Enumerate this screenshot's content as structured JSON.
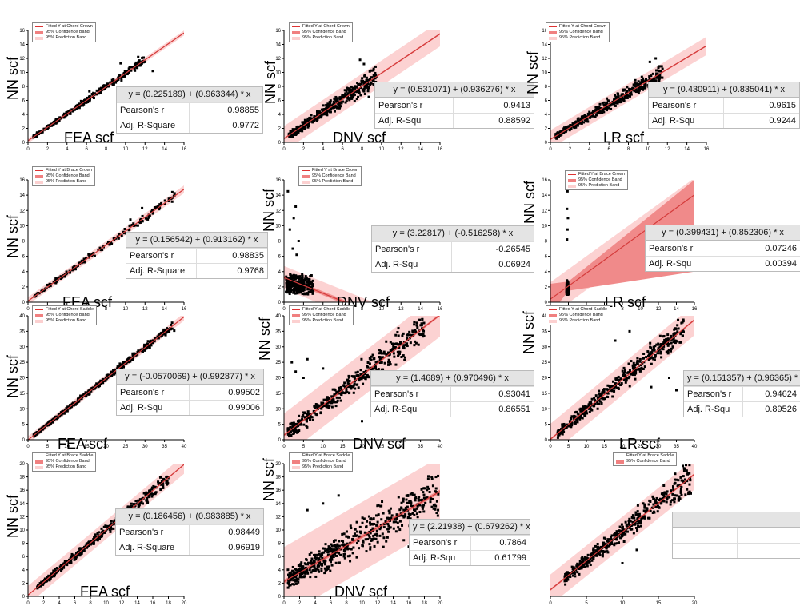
{
  "chart_data": [
    {
      "id": "p1",
      "type": "scatter",
      "xlabel": "FEA scf",
      "ylabel": "NN scf",
      "xlim": [
        0,
        16
      ],
      "ylim": [
        0,
        16
      ],
      "xticks": [
        0,
        2,
        4,
        6,
        8,
        10,
        12,
        14,
        16
      ],
      "yticks": [
        0,
        2,
        4,
        6,
        8,
        10,
        12,
        14,
        16
      ],
      "legend": [
        "Fitted Y at Chord Crown",
        "95% Confidence Band",
        "95% Prediction Band"
      ],
      "fit": {
        "intercept": 0.225189,
        "slope": 0.963344
      },
      "pred_halfwidth": 0.35,
      "conf_halfwidth": 0.05,
      "stats": {
        "equation": "y = (0.225189) + (0.963344) * x",
        "label1": "Pearson's r",
        "value1": "0.98855",
        "label2": "Adj. R-Square",
        "value2": "0.9772"
      },
      "points": {
        "n": 320,
        "xmin": 0.5,
        "xmax": 12,
        "noise": 0.4,
        "seed": 11,
        "outliers": [
          [
            12.8,
            10.2
          ],
          [
            11.3,
            12.2
          ],
          [
            9.5,
            11.3
          ],
          [
            6.3,
            7.3
          ]
        ]
      }
    },
    {
      "id": "p2",
      "type": "scatter",
      "xlabel": "DNV scf",
      "ylabel": "NN scf",
      "xlim": [
        0,
        16
      ],
      "ylim": [
        0,
        16
      ],
      "xticks": [
        0,
        2,
        4,
        6,
        8,
        10,
        12,
        14,
        16
      ],
      "yticks": [
        0,
        2,
        4,
        6,
        8,
        10,
        12,
        14,
        16
      ],
      "legend": [
        "Fitted Y at Chord Crown",
        "95% Confidence Band",
        "95% Prediction Band"
      ],
      "fit": {
        "intercept": 0.531071,
        "slope": 0.936276
      },
      "pred_halfwidth": 1.8,
      "conf_halfwidth": 0.12,
      "stats": {
        "equation": "y = (0.531071) + (0.936276) * x",
        "label1": "Pearson's r",
        "value1": "0.9413",
        "label2": "Adj. R-Squ",
        "value2": "0.88592"
      },
      "points": {
        "n": 420,
        "xmin": 0.5,
        "xmax": 9.5,
        "noise": 1.0,
        "seed": 23,
        "outliers": [
          [
            7.8,
            11.8
          ],
          [
            8.2,
            11.2
          ],
          [
            9.2,
            10.5
          ],
          [
            8.7,
            6.5
          ]
        ]
      }
    },
    {
      "id": "p3",
      "type": "scatter",
      "xlabel": "LR scf",
      "ylabel": "NN scf",
      "xlim": [
        0,
        16
      ],
      "ylim": [
        0,
        16
      ],
      "xticks": [
        0,
        2,
        4,
        6,
        8,
        10,
        12,
        14,
        16
      ],
      "yticks": [
        0,
        2,
        4,
        6,
        8,
        10,
        12,
        14,
        16
      ],
      "legend": [
        "Fitted Y at Chord Crown",
        "95% Confidence Band",
        "95% Prediction Band"
      ],
      "fit": {
        "intercept": 0.430911,
        "slope": 0.835041
      },
      "pred_halfwidth": 1.3,
      "conf_halfwidth": 0.1,
      "stats": {
        "equation": "y = (0.430911) + (0.835041) * x",
        "label1": "Pearson's r",
        "value1": "0.9615",
        "label2": "Adj. R-Squ",
        "value2": "0.9244"
      },
      "points": {
        "n": 420,
        "xmin": 0.5,
        "xmax": 11.5,
        "noise": 0.8,
        "seed": 37,
        "outliers": [
          [
            10.8,
            12.0
          ],
          [
            10.2,
            11.5
          ],
          [
            11.5,
            10.5
          ]
        ]
      }
    },
    {
      "id": "p4",
      "type": "scatter",
      "xlabel": "FEA scf",
      "ylabel": "NN scf",
      "xlim": [
        0,
        16
      ],
      "ylim": [
        0,
        16
      ],
      "xticks": [
        0,
        2,
        4,
        6,
        8,
        10,
        12,
        14,
        16
      ],
      "yticks": [
        0,
        2,
        4,
        6,
        8,
        10,
        12,
        14,
        16
      ],
      "legend": [
        "Fitted Y at Brace Crown",
        "95% Confidence Band",
        "95% Prediction Band"
      ],
      "fit": {
        "intercept": 0.156542,
        "slope": 0.913162
      },
      "pred_halfwidth": 0.5,
      "conf_halfwidth": 0.06,
      "stats": {
        "equation": "y = (0.156542) + (0.913162) * x",
        "label1": "Pearson's r",
        "value1": "0.98835",
        "label2": "Adj. R-Square",
        "value2": "0.9768"
      },
      "points": {
        "n": 160,
        "xmin": 0.6,
        "xmax": 15.2,
        "noise": 0.4,
        "seed": 41,
        "outliers": [
          [
            14.8,
            14.4
          ],
          [
            11.7,
            12.3
          ],
          [
            10.5,
            10.8
          ]
        ]
      }
    },
    {
      "id": "p5",
      "type": "scatter",
      "xlabel": "DNV scf",
      "ylabel": "NN scf",
      "xlim": [
        0,
        16
      ],
      "ylim": [
        0,
        16
      ],
      "xticks": [
        0,
        2,
        4,
        6,
        8,
        10,
        12,
        14,
        16
      ],
      "yticks": [
        0,
        2,
        4,
        6,
        8,
        10,
        12,
        14,
        16
      ],
      "legend": [
        "Fitted Y at Brace Crown",
        "95% Confidence Band",
        "95% Prediction Band"
      ],
      "fit": {
        "intercept": 3.22817,
        "slope": -0.516258
      },
      "pred_halfwidth": 1.5,
      "conf_halfwidth": 0.25,
      "stats": {
        "equation": "y = (3.22817) + (-0.516258) * x",
        "label1": "Pearson's r",
        "value1": "-0.26545",
        "label2": "Adj. R-Squ",
        "value2": "0.06924"
      },
      "points": {
        "n": 300,
        "xmin": 0.2,
        "xmax": 3.0,
        "noise": 0.8,
        "seed": 53,
        "cluster": true,
        "outliers": [
          [
            0.4,
            14.5
          ],
          [
            1.2,
            12.5
          ],
          [
            1.0,
            11.0
          ],
          [
            0.6,
            9.5
          ],
          [
            1.5,
            8.0
          ],
          [
            0.9,
            7.0
          ],
          [
            1.3,
            6.2
          ]
        ]
      }
    },
    {
      "id": "p6",
      "type": "scatter",
      "xlabel": "LR scf",
      "ylabel": "NN scf",
      "xlim": [
        0,
        16
      ],
      "ylim": [
        0,
        16
      ],
      "xticks": [
        0,
        2,
        4,
        6,
        8,
        10,
        12,
        14,
        16
      ],
      "yticks": [
        0,
        2,
        4,
        6,
        8,
        10,
        12,
        14,
        16
      ],
      "legend": [
        "Fitted Y at Brace Crown",
        "95% Confidence Band",
        "95% Prediction Band"
      ],
      "fit": {
        "intercept": 0.399431,
        "slope": 0.852306
      },
      "pred_halfwidth": 2.2,
      "conf_halfwidth": "wide",
      "stats": {
        "equation": "y = (0.399431) + (0.852306) * x",
        "label1": "Pearson's r",
        "value1": "0.07246",
        "label2": "Adj. R-Squ",
        "value2": "0.00394"
      },
      "points": {
        "n": 200,
        "xmin": 1.8,
        "xmax": 2.0,
        "noise": 0.9,
        "seed": 67,
        "vertical": true,
        "outliers": [
          [
            1.9,
            14.5
          ],
          [
            1.85,
            12.2
          ],
          [
            1.95,
            11.0
          ],
          [
            1.9,
            9.5
          ],
          [
            1.85,
            8.2
          ]
        ]
      }
    },
    {
      "id": "p7",
      "type": "scatter",
      "xlabel": "FEA scf",
      "ylabel": "NN scf",
      "xlim": [
        0,
        40
      ],
      "ylim": [
        0,
        40
      ],
      "xticks": [
        0,
        5,
        10,
        15,
        20,
        25,
        30,
        35,
        40
      ],
      "yticks": [
        0,
        5,
        10,
        15,
        20,
        25,
        30,
        35,
        40
      ],
      "legend": [
        "Fitted Y at Chord Saddle",
        "95% Confidence Band",
        "95% Prediction Band"
      ],
      "fit": {
        "intercept": -0.0570069,
        "slope": 0.992877
      },
      "pred_halfwidth": 1.2,
      "conf_halfwidth": 0.1,
      "stats": {
        "equation": "y = (-0.0570069) + (0.992877) * x",
        "label1": "Pearson's r",
        "value1": "0.99502",
        "label2": "Adj. R-Squ",
        "value2": "0.99006"
      },
      "points": {
        "n": 420,
        "xmin": 1.5,
        "xmax": 37,
        "noise": 0.9,
        "seed": 71,
        "outliers": [
          [
            36.5,
            35.8
          ],
          [
            37.5,
            35.2
          ]
        ]
      }
    },
    {
      "id": "p8",
      "type": "scatter",
      "xlabel": "DNV scf",
      "ylabel": "NN scf",
      "xlim": [
        0,
        40
      ],
      "ylim": [
        0,
        40
      ],
      "xticks": [
        0,
        5,
        10,
        15,
        20,
        25,
        30,
        35,
        40
      ],
      "yticks": [
        0,
        5,
        10,
        15,
        20,
        25,
        30,
        35,
        40
      ],
      "legend": [
        "Fitted Y at Chord Saddle",
        "95% Confidence Band",
        "95% Prediction Band"
      ],
      "fit": {
        "intercept": 1.4689,
        "slope": 0.970496
      },
      "pred_halfwidth": 7.0,
      "conf_halfwidth": 0.4,
      "stats": {
        "equation": "y = (1.4689) + (0.970496) * x",
        "label1": "Pearson's r",
        "value1": "0.93041",
        "label2": "Adj. R-Squ",
        "value2": "0.86551"
      },
      "points": {
        "n": 420,
        "xmin": 1,
        "xmax": 36,
        "noise": 4.0,
        "seed": 83,
        "outliers": [
          [
            2,
            25
          ],
          [
            3,
            22
          ],
          [
            6,
            26
          ],
          [
            5,
            20
          ],
          [
            10,
            23
          ],
          [
            20,
            6
          ],
          [
            25,
            8
          ]
        ]
      }
    },
    {
      "id": "p9",
      "type": "scatter",
      "xlabel": "LR scf",
      "ylabel": "NN scf",
      "xlim": [
        0,
        40
      ],
      "ylim": [
        0,
        40
      ],
      "xticks": [
        0,
        5,
        10,
        15,
        20,
        25,
        30,
        35,
        40
      ],
      "yticks": [
        0,
        5,
        10,
        15,
        20,
        25,
        30,
        35,
        40
      ],
      "legend": [
        "Fitted Y at Chord Saddle",
        "95% Confidence Band",
        "95% Prediction Band"
      ],
      "fit": {
        "intercept": 0.151357,
        "slope": 0.96365
      },
      "pred_halfwidth": 5.0,
      "conf_halfwidth": 0.3,
      "stats": {
        "equation": "y = (0.151357) + (0.96365) * x",
        "label1": "Pearson's r",
        "value1": "0.94624",
        "label2": "Adj. R-Squ",
        "value2": "0.89526"
      },
      "points": {
        "n": 420,
        "xmin": 2,
        "xmax": 37,
        "noise": 3.0,
        "seed": 97,
        "outliers": [
          [
            28,
            17
          ],
          [
            35,
            16
          ],
          [
            33,
            20
          ],
          [
            18,
            32
          ],
          [
            22,
            35
          ]
        ]
      }
    },
    {
      "id": "p10",
      "type": "scatter",
      "xlabel": "FEA scf",
      "ylabel": "NN scf",
      "xlim": [
        0,
        20
      ],
      "ylim": [
        0,
        20
      ],
      "xticks": [
        0,
        2,
        4,
        6,
        8,
        10,
        12,
        14,
        16,
        18,
        20
      ],
      "yticks": [
        0,
        2,
        4,
        6,
        8,
        10,
        12,
        14,
        16,
        18,
        20
      ],
      "legend": [
        "Fitted Y at Brace Saddle",
        "95% Confidence Band",
        "95% Prediction Band"
      ],
      "fit": {
        "intercept": 0.186456,
        "slope": 0.983885
      },
      "pred_halfwidth": 1.4,
      "conf_halfwidth": 0.1,
      "stats": {
        "equation": "y = (0.186456) + (0.983885) * x",
        "label1": "Pearson's r",
        "value1": "0.98449",
        "label2": "Adj. R-Square",
        "value2": "0.96919"
      },
      "points": {
        "n": 460,
        "xmin": 1.2,
        "xmax": 18,
        "noise": 0.7,
        "seed": 101,
        "outliers": [
          [
            13,
            8
          ],
          [
            12.5,
            9.2
          ],
          [
            17.5,
            17.5
          ]
        ]
      }
    },
    {
      "id": "p11",
      "type": "scatter",
      "xlabel": "DNV scf",
      "ylabel": "NN scf",
      "xlim": [
        0,
        20
      ],
      "ylim": [
        0,
        20
      ],
      "xticks": [
        0,
        2,
        4,
        6,
        8,
        10,
        12,
        14,
        16,
        18,
        20
      ],
      "yticks": [
        0,
        2,
        4,
        6,
        8,
        10,
        12,
        14,
        16,
        18,
        20
      ],
      "legend": [
        "Fitted Y at Brace Saddle",
        "95% Confidence Band",
        "95% Prediction Band"
      ],
      "fit": {
        "intercept": 2.21938,
        "slope": 0.679262
      },
      "pred_halfwidth": 5.2,
      "conf_halfwidth": 0.3,
      "stats": {
        "equation": "y = (2.21938) + (0.679262) * x",
        "label1": "Pearson's r",
        "value1": "0.7864",
        "label2": "Adj. R-Squ",
        "value2": "0.61799"
      },
      "points": {
        "n": 520,
        "xmin": 0.5,
        "xmax": 19.8,
        "noise": 2.8,
        "seed": 113,
        "outliers": [
          [
            3,
            13
          ],
          [
            5,
            14
          ],
          [
            7,
            15.2
          ],
          [
            16,
            7.5
          ]
        ]
      }
    },
    {
      "id": "p12",
      "type": "scatter",
      "xlabel": "",
      "ylabel": "",
      "xlim": [
        0,
        20
      ],
      "ylim": [
        0,
        20
      ],
      "xticks": [
        0,
        5,
        10,
        15,
        20
      ],
      "yticks": [],
      "legend": [
        "Fitted Y at Brace Saddle",
        "95% Confidence Band"
      ],
      "fit": {
        "intercept": 1.0,
        "slope": 0.87
      },
      "pred_halfwidth": 2.3,
      "conf_halfwidth": 0.15,
      "stats": {
        "equation": "",
        "label1": "",
        "value1": "",
        "label2": "",
        "value2": ""
      },
      "points": {
        "n": 430,
        "xmin": 2,
        "xmax": 19.5,
        "noise": 1.6,
        "seed": 127,
        "outliers": [
          [
            10,
            5
          ],
          [
            12,
            7
          ],
          [
            19.5,
            15.5
          ]
        ]
      }
    }
  ],
  "colors": {
    "fit_line": "#d43a3a",
    "conf_band": "#f08a8a",
    "pred_band": "#fcd2d2",
    "points": "#000000"
  }
}
